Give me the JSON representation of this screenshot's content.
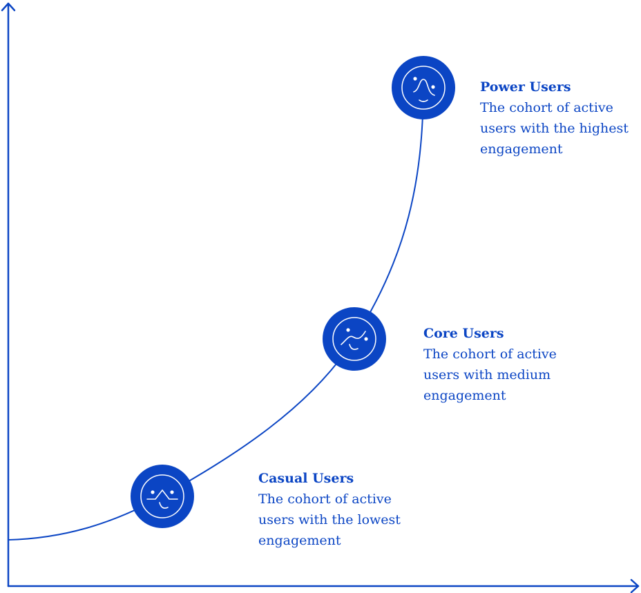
{
  "colors": {
    "accent": "#0b45c4",
    "icon_stroke": "#ffffff"
  },
  "cohorts": [
    {
      "title": "Power Users",
      "description": "The cohort of active users with the highest engagement",
      "icon": "face-icon-power"
    },
    {
      "title": "Core Users",
      "description": "The cohort of active users with medium engagement",
      "icon": "face-icon-core"
    },
    {
      "title": "Casual Users",
      "description": "The cohort of active users with the lowest engagement",
      "icon": "face-icon-casual"
    }
  ]
}
